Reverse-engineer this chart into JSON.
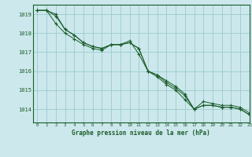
{
  "title": "Graphe pression niveau de la mer (hPa)",
  "background_color": "#cce8ec",
  "plot_bg_color": "#cce8ec",
  "grid_color": "#99cccc",
  "line_color": "#1a5c2a",
  "marker_color": "#1a5c2a",
  "xlim": [
    -0.5,
    23
  ],
  "ylim": [
    1013.3,
    1019.5
  ],
  "yticks": [
    1014,
    1015,
    1016,
    1017,
    1018,
    1019
  ],
  "xticks": [
    0,
    1,
    2,
    3,
    4,
    5,
    6,
    7,
    8,
    9,
    10,
    11,
    12,
    13,
    14,
    15,
    16,
    17,
    18,
    19,
    20,
    21,
    22,
    23
  ],
  "series": [
    [
      1019.2,
      1019.2,
      1019.0,
      1018.2,
      1017.9,
      1017.5,
      1017.3,
      1017.2,
      1017.4,
      1017.4,
      1017.5,
      1017.2,
      1016.0,
      1015.8,
      1015.5,
      1015.2,
      1014.8,
      1014.0,
      1014.2,
      1014.2,
      1014.1,
      1014.1,
      1014.0,
      1013.7
    ],
    [
      1019.2,
      1019.2,
      1018.9,
      1018.2,
      1017.9,
      1017.5,
      1017.3,
      1017.2,
      1017.4,
      1017.4,
      1017.5,
      1017.2,
      1016.0,
      1015.8,
      1015.4,
      1015.1,
      1014.7,
      1014.0,
      1014.2,
      1014.2,
      1014.1,
      1014.1,
      1014.0,
      1013.7
    ],
    [
      1019.2,
      1019.2,
      1018.5,
      1018.0,
      1017.7,
      1017.4,
      1017.2,
      1017.1,
      1017.4,
      1017.4,
      1017.6,
      1016.9,
      1016.0,
      1015.7,
      1015.3,
      1015.0,
      1014.5,
      1014.0,
      1014.4,
      1014.3,
      1014.2,
      1014.2,
      1014.1,
      1013.8
    ]
  ]
}
